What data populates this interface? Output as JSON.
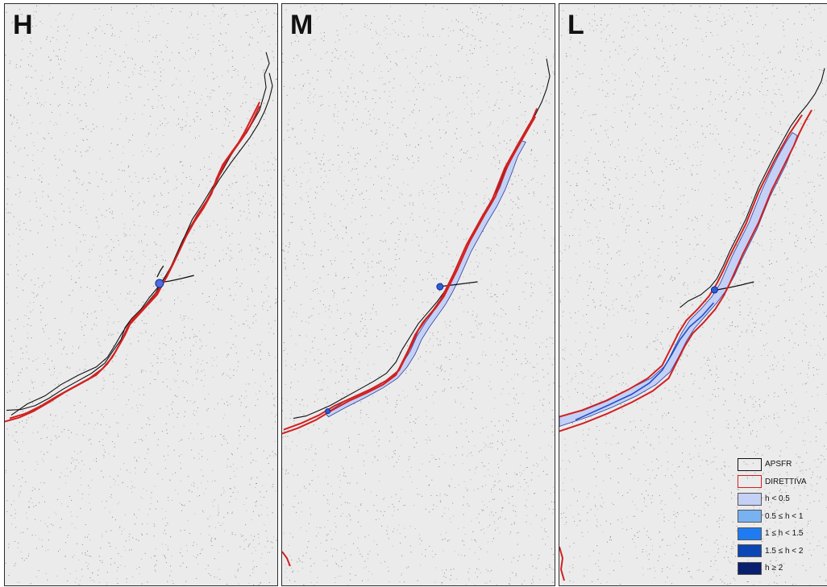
{
  "panels": [
    {
      "id": "panel-h",
      "label": "H",
      "scenario": "high",
      "flood_extent": false
    },
    {
      "id": "panel-m",
      "label": "M",
      "scenario": "medium",
      "flood_extent": true
    },
    {
      "id": "panel-l",
      "label": "L",
      "scenario": "low",
      "flood_extent": true
    }
  ],
  "legend": {
    "items": [
      {
        "label": "APSFR",
        "style": "outline",
        "color": "#111111"
      },
      {
        "label": "DIRETTIVA",
        "style": "outline",
        "color": "#d22020"
      },
      {
        "label": "h < 0.5",
        "style": "fill",
        "color": "#c4d0f5"
      },
      {
        "label": "0.5 ≤ h < 1",
        "style": "fill",
        "color": "#78b2f0"
      },
      {
        "label": "1 ≤ h < 1.5",
        "style": "fill",
        "color": "#1f7cf0"
      },
      {
        "label": "1.5 ≤ h < 2",
        "style": "fill",
        "color": "#0a46b4"
      },
      {
        "label": "h ≥ 2",
        "style": "fill",
        "color": "#081e6e"
      }
    ]
  },
  "colors": {
    "background": "#e9e9e9",
    "apsfr": "#111111",
    "direttiva": "#d22020",
    "flood_shallow": "#c4d0f5",
    "flood_deep": "#0a46b4"
  }
}
